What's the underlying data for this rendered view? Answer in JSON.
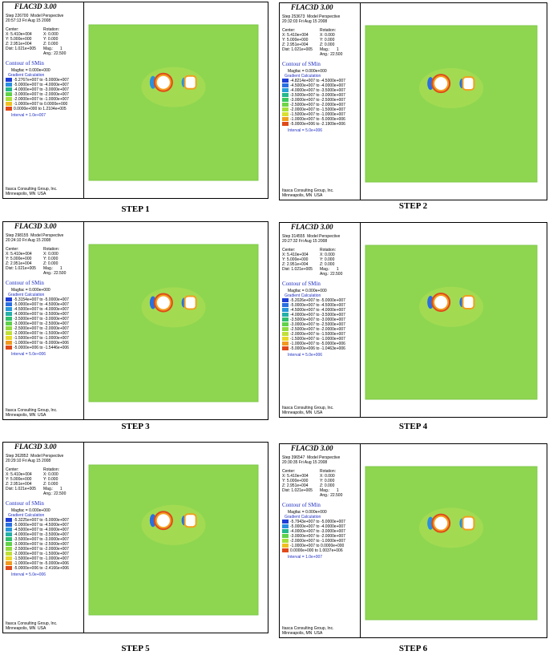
{
  "panels": [
    {
      "caption": "STEP 1",
      "title": "FLAC3D 3.00",
      "step": "Step 226700  Model Perspective",
      "date": "20:57:13 Fri Aug 15 2008",
      "center": [
        "Center:",
        "X: 5.410e+004",
        "Y: 5.000e+000",
        "Z: 2.951e+004"
      ],
      "rotation": [
        "Rotation:",
        "X: 0.000",
        "Y: 0.000",
        "Z: 0.000"
      ],
      "dist": "Dist: 1.021e+005",
      "mag": "Mag.:      1",
      "ang": "Ang.: 22.500",
      "contour": "Contour of SMin",
      "magfac": "Magfac = 0.000e+000",
      "gradient": "Gradient Calculation",
      "legend": [
        {
          "label": "-5.2767e+007 to -5.0000e+007",
          "color": "#1f3fd6"
        },
        {
          "label": "-5.0000e+007 to -4.0000e+007",
          "color": "#2a8fe0"
        },
        {
          "label": "-4.0000e+007 to -3.0000e+007",
          "color": "#25b88c"
        },
        {
          "label": "-3.0000e+007 to -2.0000e+007",
          "color": "#5fd24a"
        },
        {
          "label": "-2.0000e+007 to -1.0000e+007",
          "color": "#a8e03a"
        },
        {
          "label": "-1.0000e+007 to 0.0000e+000",
          "color": "#f0c020"
        },
        {
          "label": "0.0000e+000 to 1.2104e+005",
          "color": "#e04a1a"
        }
      ],
      "interval": "Interval = 1.0e+007",
      "footer": [
        "Itasca Consulting Group, Inc.",
        "Minneapolis, MN  USA"
      ]
    },
    {
      "caption": "STEP 2",
      "title": "FLAC3D 3.00",
      "step": "Step 253673  Model Perspective",
      "date": "20:32:03 Fri Aug 15 2008",
      "center": [
        "Center:",
        "X: 5.410e+004",
        "Y: 5.000e+000",
        "Z: 2.951e+004"
      ],
      "rotation": [
        "Rotation:",
        "X: 0.000",
        "Y: 0.000",
        "Z: 0.000"
      ],
      "dist": "Dist: 1.021e+005",
      "mag": "Mag.:      1",
      "ang": "Ang.: 22.500",
      "contour": "Contour of SMin",
      "magfac": "Magfac = 0.000e+000",
      "gradient": "Gradient Calculation",
      "legend": [
        {
          "label": "-4.8214e+007 to -4.5000e+007",
          "color": "#1f3fd6"
        },
        {
          "label": "-4.5000e+007 to -4.0000e+007",
          "color": "#2a6fe0"
        },
        {
          "label": "-4.0000e+007 to -3.5000e+007",
          "color": "#2aa0d8"
        },
        {
          "label": "-3.5000e+007 to -3.0000e+007",
          "color": "#25b88c"
        },
        {
          "label": "-3.0000e+007 to -2.5000e+007",
          "color": "#3cc860"
        },
        {
          "label": "-2.5000e+007 to -2.0000e+007",
          "color": "#6fd448"
        },
        {
          "label": "-2.0000e+007 to -1.5000e+007",
          "color": "#a8e03a"
        },
        {
          "label": "-1.5000e+007 to -1.0000e+007",
          "color": "#d8e030"
        },
        {
          "label": "-1.0000e+007 to -5.0000e+006",
          "color": "#f0a020"
        },
        {
          "label": "-5.0000e+006 to -2.1909e+006",
          "color": "#e04a1a"
        }
      ],
      "interval": "Interval = 5.0e+006",
      "footer": [
        "Itasca Consulting Group, Inc.",
        "Minneapolis, MN  USA"
      ]
    },
    {
      "caption": "STEP 3",
      "title": "FLAC3D 3.00",
      "step": "Step 298155  Model Perspective",
      "date": "20:24:10 Fri Aug 15 2008",
      "center": [
        "Center:",
        "X: 5.410e+004",
        "Y: 5.000e+000",
        "Z: 2.951e+004"
      ],
      "rotation": [
        "Rotation:",
        "X: 0.000",
        "Y: 0.000",
        "Z: 0.000"
      ],
      "dist": "Dist: 1.021e+005",
      "mag": "Mag.:      1",
      "ang": "Ang.: 22.500",
      "contour": "Contour of SMin",
      "magfac": "Magfac = 0.000e+000",
      "gradient": "Gradient Calculation",
      "legend": [
        {
          "label": "-5.3154e+007 to -5.0000e+007",
          "color": "#1f3fd6"
        },
        {
          "label": "-5.0000e+007 to -4.5000e+007",
          "color": "#2a6fe0"
        },
        {
          "label": "-4.5000e+007 to -4.0000e+007",
          "color": "#2a98da"
        },
        {
          "label": "-4.0000e+007 to -3.5000e+007",
          "color": "#25b0a8"
        },
        {
          "label": "-3.5000e+007 to -3.0000e+007",
          "color": "#30c070"
        },
        {
          "label": "-3.0000e+007 to -2.5000e+007",
          "color": "#5fd24a"
        },
        {
          "label": "-2.5000e+007 to -2.0000e+007",
          "color": "#90dc40"
        },
        {
          "label": "-2.0000e+007 to -1.5000e+007",
          "color": "#c0e038"
        },
        {
          "label": "-1.5000e+007 to -1.0000e+007",
          "color": "#e8d828"
        },
        {
          "label": "-1.0000e+007 to -5.0000e+006",
          "color": "#f09a20"
        },
        {
          "label": "-5.0000e+006 to -1.5446e+006",
          "color": "#e04a1a"
        }
      ],
      "interval": "Interval = 5.0e+006",
      "footer": [
        "Itasca Consulting Group, Inc.",
        "Minneapolis, MN  USA"
      ]
    },
    {
      "caption": "STEP 4",
      "title": "FLAC3D 3.00",
      "step": "Step 314555  Model Perspective",
      "date": "20:27:32 Fri Aug 15 2008",
      "center": [
        "Center:",
        "X: 5.410e+004",
        "Y: 5.000e+000",
        "Z: 2.951e+004"
      ],
      "rotation": [
        "Rotation:",
        "X: 0.000",
        "Y: 0.000",
        "Z: 0.000"
      ],
      "dist": "Dist: 1.021e+005",
      "mag": "Mag.:      1",
      "ang": "Ang.: 22.500",
      "contour": "Contour of SMin",
      "magfac": "Magfac = 0.000e+000",
      "gradient": "Gradient Calculation",
      "legend": [
        {
          "label": "-5.2026e+007 to -5.0000e+007",
          "color": "#1f3fd6"
        },
        {
          "label": "-5.0000e+007 to -4.5000e+007",
          "color": "#2a6fe0"
        },
        {
          "label": "-4.5000e+007 to -4.0000e+007",
          "color": "#2a98da"
        },
        {
          "label": "-4.0000e+007 to -3.5000e+007",
          "color": "#25b0a8"
        },
        {
          "label": "-3.5000e+007 to -3.0000e+007",
          "color": "#30c070"
        },
        {
          "label": "-3.0000e+007 to -2.5000e+007",
          "color": "#5fd24a"
        },
        {
          "label": "-2.5000e+007 to -2.0000e+007",
          "color": "#90dc40"
        },
        {
          "label": "-2.0000e+007 to -1.5000e+007",
          "color": "#c0e038"
        },
        {
          "label": "-1.5000e+007 to -1.0000e+007",
          "color": "#e8d828"
        },
        {
          "label": "-1.0000e+007 to -5.0000e+006",
          "color": "#f09a20"
        },
        {
          "label": "-5.0000e+006 to -1.0463e+006",
          "color": "#e04a1a"
        }
      ],
      "interval": "Interval = 5.0e+006",
      "footer": [
        "Itasca Consulting Group, Inc.",
        "Minneapolis, MN  USA"
      ]
    },
    {
      "caption": "STEP 5",
      "title": "FLAC3D 3.00",
      "step": "Step 362852  Model Perspective",
      "date": "20:29:10 Fri Aug 15 2008",
      "center": [
        "Center:",
        "X: 5.410e+004",
        "Y: 5.000e+000",
        "Z: 2.951e+004"
      ],
      "rotation": [
        "Rotation:",
        "X: 0.000",
        "Y: 0.000",
        "Z: 0.000"
      ],
      "dist": "Dist: 1.021e+005",
      "mag": "Mag.:      1",
      "ang": "Ang.: 22.500",
      "contour": "Contour of SMin",
      "magfac": "Magfac = 0.000e+000",
      "gradient": "Gradient Calculation",
      "legend": [
        {
          "label": "-5.3225e+007 to -5.0000e+007",
          "color": "#1f3fd6"
        },
        {
          "label": "-5.0000e+007 to -4.5000e+007",
          "color": "#2a6fe0"
        },
        {
          "label": "-4.5000e+007 to -4.0000e+007",
          "color": "#2a98da"
        },
        {
          "label": "-4.0000e+007 to -3.5000e+007",
          "color": "#25b0a8"
        },
        {
          "label": "-3.5000e+007 to -3.0000e+007",
          "color": "#30c070"
        },
        {
          "label": "-3.0000e+007 to -2.5000e+007",
          "color": "#5fd24a"
        },
        {
          "label": "-2.5000e+007 to -2.0000e+007",
          "color": "#90dc40"
        },
        {
          "label": "-2.0000e+007 to -1.5000e+007",
          "color": "#c0e038"
        },
        {
          "label": "-1.5000e+007 to -1.0000e+007",
          "color": "#e8d828"
        },
        {
          "label": "-1.0000e+007 to -5.0000e+006",
          "color": "#f09a20"
        },
        {
          "label": "-5.0000e+006 to -2.4166e+006",
          "color": "#e04a1a"
        }
      ],
      "interval": "Interval = 5.0e+006",
      "footer": [
        "Itasca Consulting Group, Inc.",
        "Minneapolis, MN  USA"
      ]
    },
    {
      "caption": "STEP 6",
      "title": "FLAC3D 3.00",
      "step": "Step 396547  Model Perspective",
      "date": "20:30:35 Fri Aug 15 2008",
      "center": [
        "Center:",
        "X: 5.410e+004",
        "Y: 5.000e+000",
        "Z: 2.951e+004"
      ],
      "rotation": [
        "Rotation:",
        "X: 0.000",
        "Y: 0.000",
        "Z: 0.000"
      ],
      "dist": "Dist: 1.021e+005",
      "mag": "Mag.:      1",
      "ang": "Ang.: 22.500",
      "contour": "Contour of SMin",
      "magfac": "Magfac = 0.000e+000",
      "gradient": "Gradient Calculation",
      "legend": [
        {
          "label": "-5.7943e+007 to -5.0000e+007",
          "color": "#1f3fd6"
        },
        {
          "label": "-5.0000e+007 to -4.0000e+007",
          "color": "#2a8fe0"
        },
        {
          "label": "-4.0000e+007 to -3.0000e+007",
          "color": "#25b88c"
        },
        {
          "label": "-3.0000e+007 to -2.0000e+007",
          "color": "#5fd24a"
        },
        {
          "label": "-2.0000e+007 to -1.0000e+007",
          "color": "#a8e03a"
        },
        {
          "label": "-1.0000e+007 to 0.0000e+000",
          "color": "#f0c020"
        },
        {
          "label": "0.0000e+000 to 1.0037e+006",
          "color": "#e04a1a"
        }
      ],
      "interval": "Interval = 1.0e+007",
      "footer": [
        "Itasca Consulting Group, Inc.",
        "Minneapolis, MN  USA"
      ]
    }
  ]
}
